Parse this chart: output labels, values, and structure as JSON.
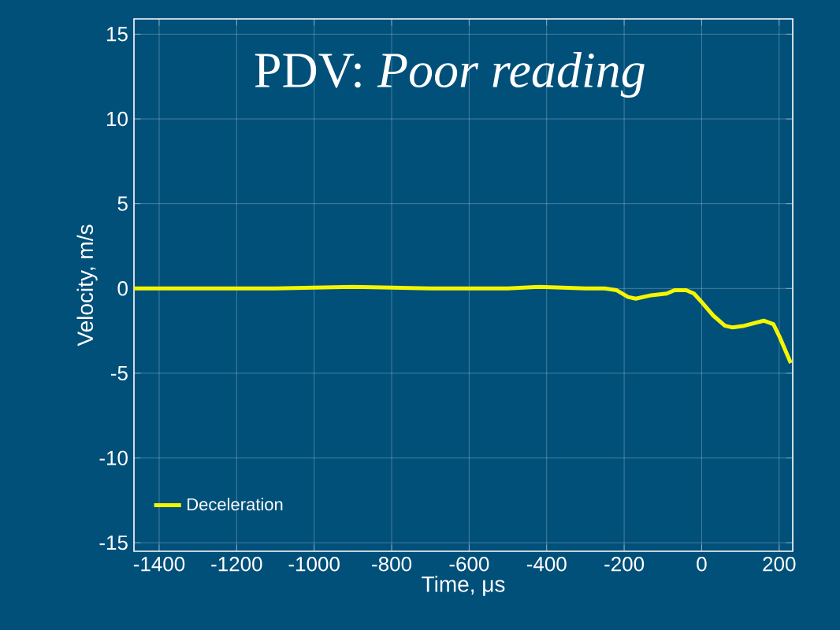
{
  "chart_data": {
    "type": "line",
    "title": "PDV: *Poor reading*",
    "xlabel": "Time, μs",
    "ylabel": "Velocity, m/s",
    "xlim": [
      -1465,
      235
    ],
    "ylim": [
      -15.5,
      15.9
    ],
    "xticks": [
      -1400,
      -1200,
      -1000,
      -800,
      -600,
      -400,
      -200,
      0,
      200
    ],
    "yticks": [
      -15,
      -10,
      -5,
      0,
      5,
      10,
      15
    ],
    "grid": true,
    "legend": "bottom left",
    "series": [
      {
        "name": "Deceleration",
        "color": "#f5f500",
        "x": [
          -1465,
          -1300,
          -1100,
          -900,
          -700,
          -500,
          -420,
          -300,
          -250,
          -220,
          -190,
          -170,
          -130,
          -90,
          -70,
          -40,
          -20,
          0,
          30,
          60,
          80,
          110,
          160,
          185,
          200,
          215,
          230
        ],
        "values": [
          0,
          0,
          0,
          0.1,
          0,
          0,
          0.1,
          0,
          0,
          -0.1,
          -0.5,
          -0.6,
          -0.4,
          -0.3,
          -0.1,
          -0.1,
          -0.3,
          -0.8,
          -1.6,
          -2.2,
          -2.3,
          -2.2,
          -1.9,
          -2.1,
          -2.8,
          -3.6,
          -4.4
        ]
      }
    ]
  }
}
